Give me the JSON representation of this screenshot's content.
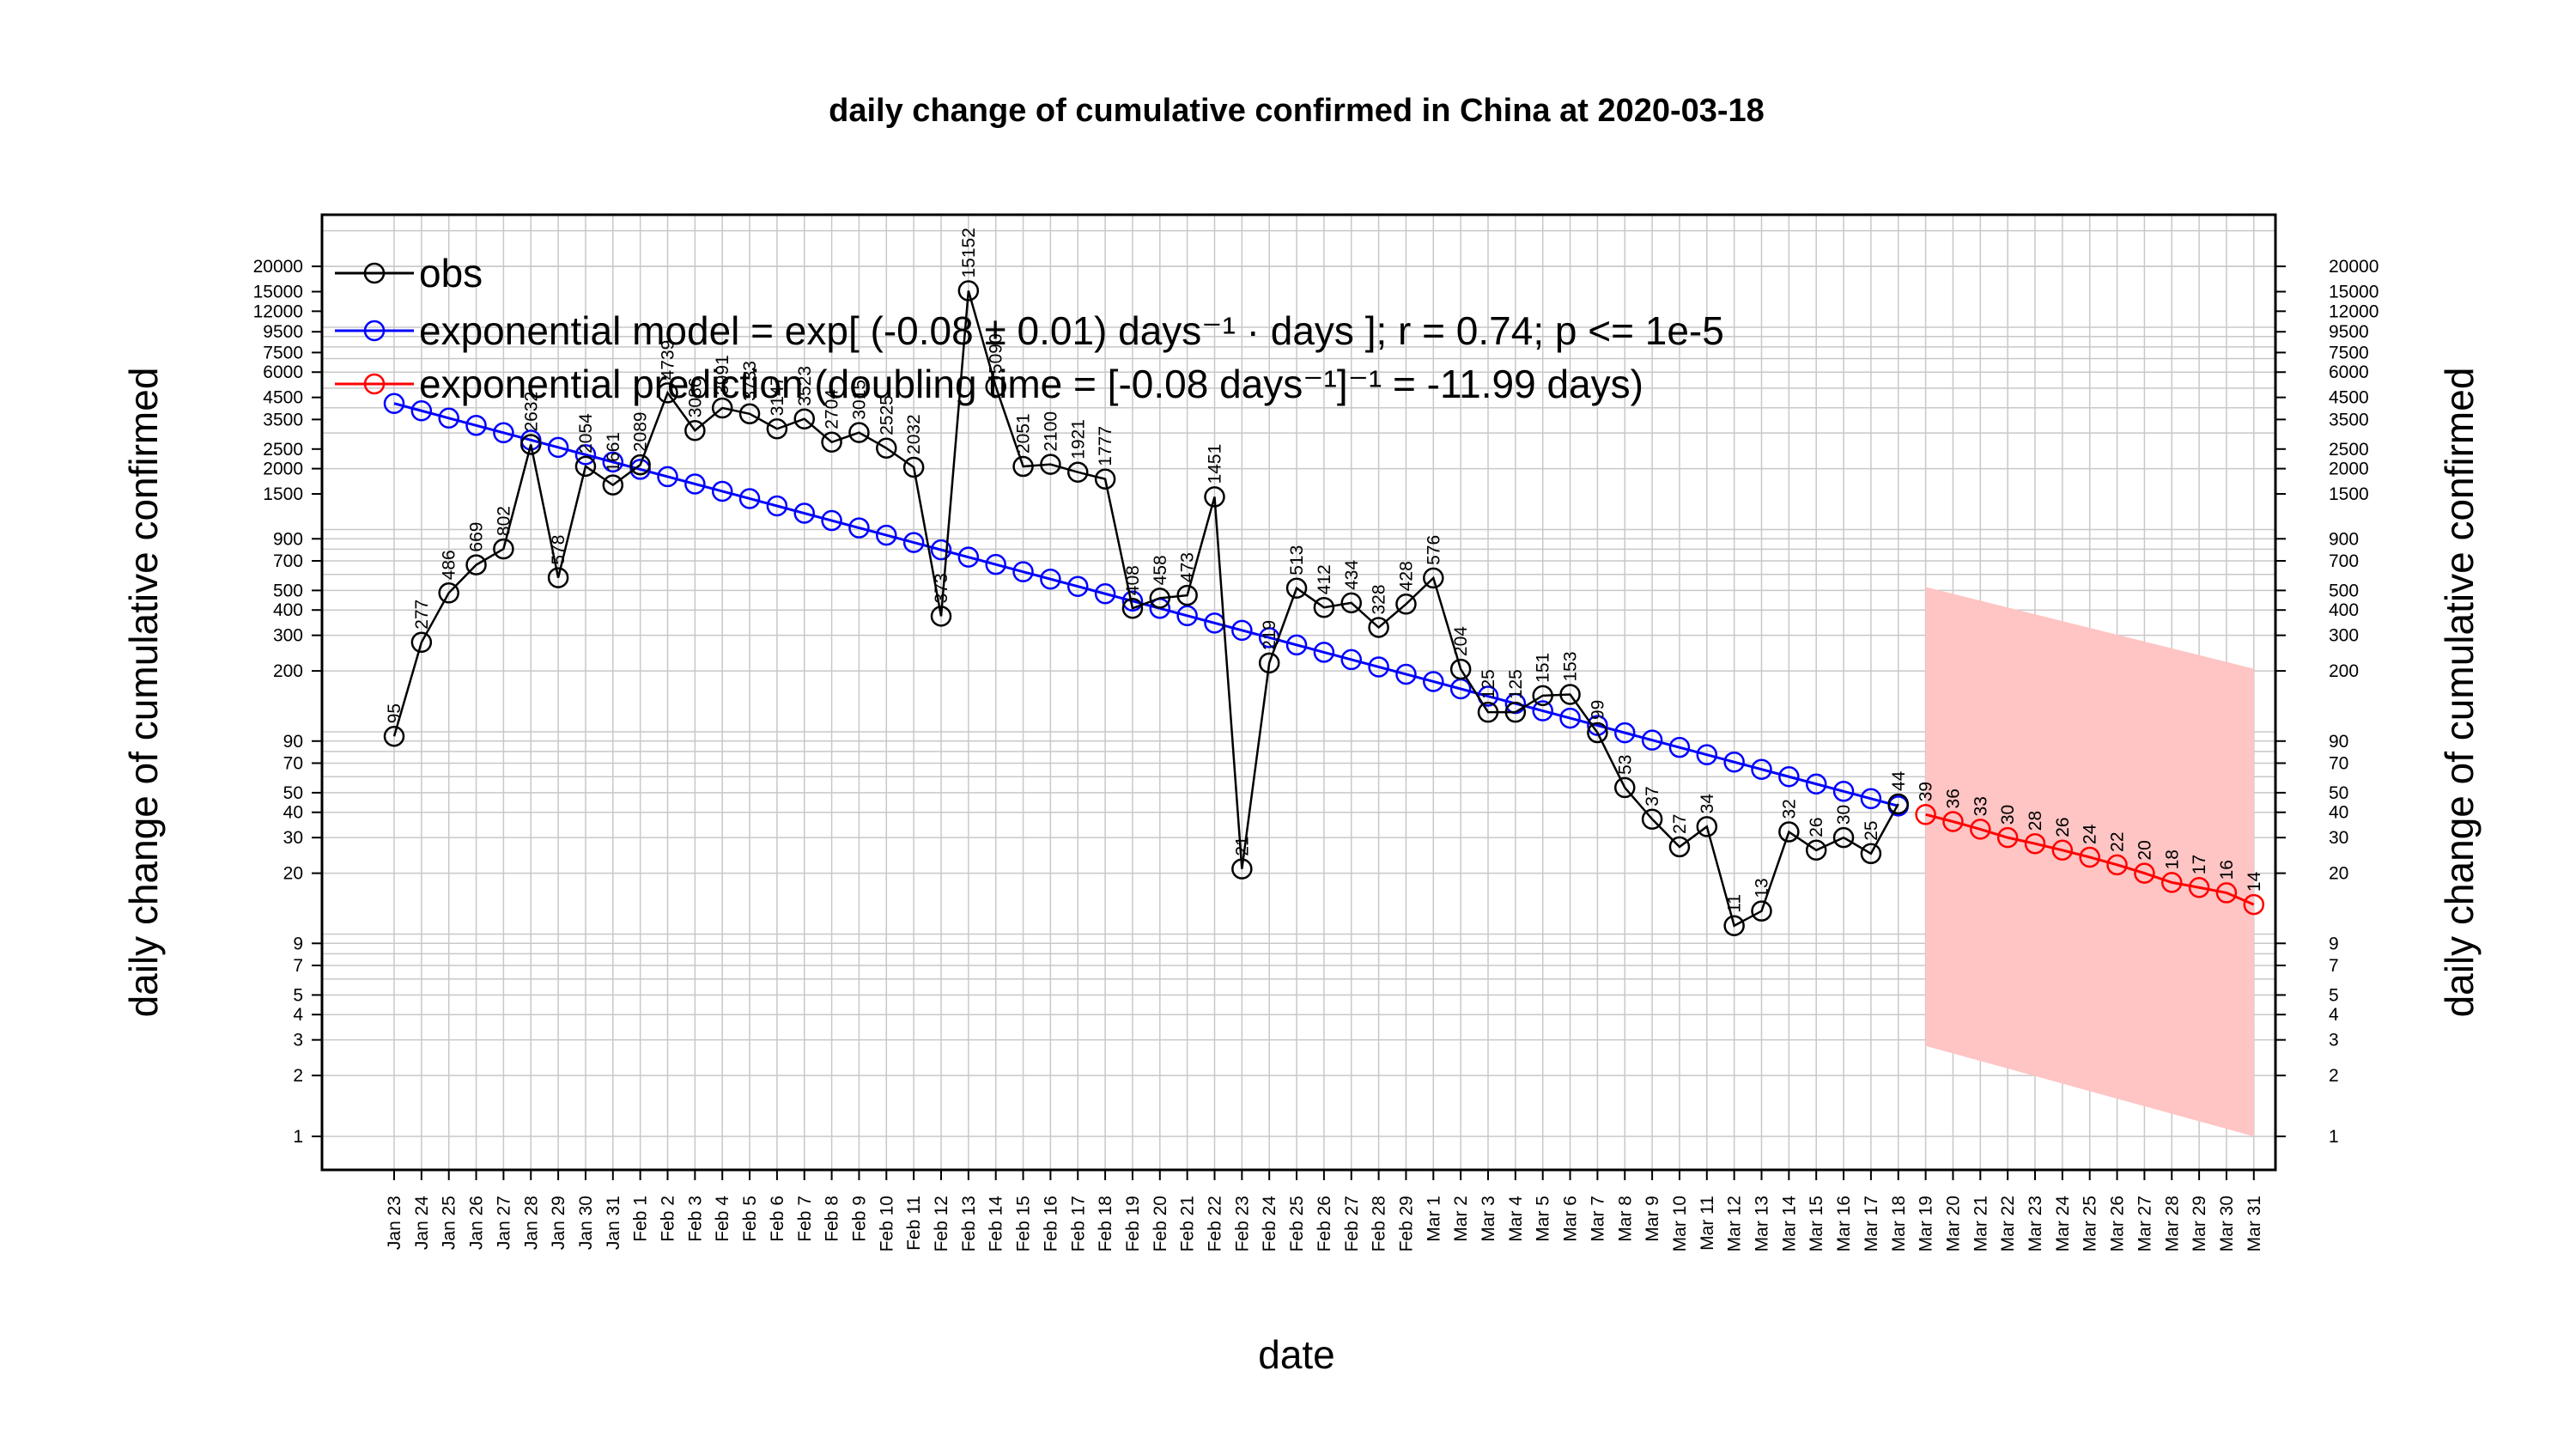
{
  "chart_data": {
    "type": "line",
    "title": "daily change of cumulative confirmed in China at 2020-03-18",
    "xlabel": "date",
    "ylabel": "daily change of cumulative confirmed",
    "y_scale": "log",
    "ylim": [
      0.7,
      25000
    ],
    "grid": true,
    "legend_position": "top-left",
    "y_ticks": [
      1,
      2,
      3,
      4,
      5,
      7,
      9,
      20,
      30,
      40,
      50,
      70,
      90,
      200,
      300,
      400,
      500,
      700,
      900,
      1500,
      2000,
      2500,
      3500,
      4500,
      6000,
      7500,
      9500,
      12000,
      15000,
      20000
    ],
    "x_dates": [
      "Jan 23",
      "Jan 24",
      "Jan 25",
      "Jan 26",
      "Jan 27",
      "Jan 28",
      "Jan 29",
      "Jan 30",
      "Jan 31",
      "Feb 1",
      "Feb 2",
      "Feb 3",
      "Feb 4",
      "Feb 5",
      "Feb 6",
      "Feb 7",
      "Feb 8",
      "Feb 9",
      "Feb 10",
      "Feb 11",
      "Feb 12",
      "Feb 13",
      "Feb 14",
      "Feb 15",
      "Feb 16",
      "Feb 17",
      "Feb 18",
      "Feb 19",
      "Feb 20",
      "Feb 21",
      "Feb 22",
      "Feb 23",
      "Feb 24",
      "Feb 25",
      "Feb 26",
      "Feb 27",
      "Feb 28",
      "Feb 29",
      "Mar 1",
      "Mar 2",
      "Mar 3",
      "Mar 4",
      "Mar 5",
      "Mar 6",
      "Mar 7",
      "Mar 8",
      "Mar 9",
      "Mar 10",
      "Mar 11",
      "Mar 12",
      "Mar 13",
      "Mar 14",
      "Mar 15",
      "Mar 16",
      "Mar 17",
      "Mar 18",
      "Mar 19",
      "Mar 20",
      "Mar 21",
      "Mar 22",
      "Mar 23",
      "Mar 24",
      "Mar 25",
      "Mar 26",
      "Mar 27",
      "Mar 28",
      "Mar 29",
      "Mar 30",
      "Mar 31"
    ],
    "series": [
      {
        "name": "obs",
        "color": "#000000",
        "x": [
          "Jan 23",
          "Jan 24",
          "Jan 25",
          "Jan 26",
          "Jan 27",
          "Jan 28",
          "Jan 29",
          "Jan 30",
          "Jan 31",
          "Feb 1",
          "Feb 2",
          "Feb 3",
          "Feb 4",
          "Feb 5",
          "Feb 6",
          "Feb 7",
          "Feb 8",
          "Feb 9",
          "Feb 10",
          "Feb 11",
          "Feb 12",
          "Feb 13",
          "Feb 14",
          "Feb 15",
          "Feb 16",
          "Feb 17",
          "Feb 18",
          "Feb 19",
          "Feb 20",
          "Feb 21",
          "Feb 22",
          "Feb 23",
          "Feb 24",
          "Feb 25",
          "Feb 26",
          "Feb 27",
          "Feb 28",
          "Feb 29",
          "Mar 1",
          "Mar 2",
          "Mar 3",
          "Mar 4",
          "Mar 5",
          "Mar 6",
          "Mar 7",
          "Mar 8",
          "Mar 9",
          "Mar 10",
          "Mar 11",
          "Mar 12",
          "Mar 13",
          "Mar 14",
          "Mar 15",
          "Mar 16",
          "Mar 17",
          "Mar 18"
        ],
        "values": [
          95,
          277,
          486,
          669,
          802,
          2632,
          578,
          2054,
          1661,
          2089,
          4739,
          3086,
          3991,
          3733,
          3147,
          3523,
          2704,
          3015,
          2525,
          2032,
          373,
          15152,
          5090,
          2051,
          2100,
          1921,
          1777,
          408,
          458,
          473,
          1451,
          21,
          219,
          513,
          412,
          434,
          328,
          428,
          576,
          204,
          125,
          125,
          151,
          153,
          99,
          53,
          37,
          27,
          34,
          11,
          13,
          32,
          26,
          30,
          25,
          44
        ],
        "labels": [
          "95",
          "277",
          "486",
          "669",
          "802",
          "2632",
          "578",
          "2054",
          "1661",
          "2089",
          "4739",
          "3086",
          "3991",
          "3733",
          "3147",
          "3523",
          "2704",
          "3015",
          "2525",
          "2032",
          "373",
          "15152",
          "5090",
          "2051",
          "2100",
          "1921",
          "1777",
          "408",
          "458",
          "473",
          "1451",
          "21",
          "219",
          "513",
          "412",
          "434",
          "328",
          "428",
          "576",
          "204",
          "125",
          "125",
          "151",
          "153",
          "99",
          "53",
          "37",
          "27",
          "34",
          "11",
          "13",
          "32",
          "26",
          "30",
          "25",
          "44"
        ]
      },
      {
        "name": "exponential model",
        "color": "#0000ff",
        "x": [
          "Jan 23",
          "Jan 24",
          "Jan 25",
          "Jan 26",
          "Jan 27",
          "Jan 28",
          "Jan 29",
          "Jan 30",
          "Jan 31",
          "Feb 1",
          "Feb 2",
          "Feb 3",
          "Feb 4",
          "Feb 5",
          "Feb 6",
          "Feb 7",
          "Feb 8",
          "Feb 9",
          "Feb 10",
          "Feb 11",
          "Feb 12",
          "Feb 13",
          "Feb 14",
          "Feb 15",
          "Feb 16",
          "Feb 17",
          "Feb 18",
          "Feb 19",
          "Feb 20",
          "Feb 21",
          "Feb 22",
          "Feb 23",
          "Feb 24",
          "Feb 25",
          "Feb 26",
          "Feb 27",
          "Feb 28",
          "Feb 29",
          "Mar 1",
          "Mar 2",
          "Mar 3",
          "Mar 4",
          "Mar 5",
          "Mar 6",
          "Mar 7",
          "Mar 8",
          "Mar 9",
          "Mar 10",
          "Mar 11",
          "Mar 12",
          "Mar 13",
          "Mar 14",
          "Mar 15",
          "Mar 16",
          "Mar 17",
          "Mar 18"
        ],
        "start": 4200,
        "end": 43
      },
      {
        "name": "exponential prediction",
        "color": "#ff0000",
        "x": [
          "Mar 19",
          "Mar 20",
          "Mar 21",
          "Mar 22",
          "Mar 23",
          "Mar 24",
          "Mar 25",
          "Mar 26",
          "Mar 27",
          "Mar 28",
          "Mar 29",
          "Mar 30",
          "Mar 31"
        ],
        "values": [
          39,
          36,
          33,
          30,
          28,
          26,
          24,
          22,
          20,
          18,
          17,
          16,
          14
        ],
        "labels": [
          "39",
          "36",
          "33",
          "30",
          "28",
          "26",
          "24",
          "22",
          "20",
          "18",
          "17",
          "16",
          "14"
        ],
        "band_upper": [
          520,
          205
        ],
        "band_lower": [
          2.8,
          1.0
        ],
        "band_color": "#ffc4c4"
      }
    ],
    "legend": [
      {
        "label": "obs",
        "color": "#000000"
      },
      {
        "label": "exponential model = exp[ (-0.08 ± 0.01) days⁻¹ · days ]; r = 0.74; p <= 1e-5",
        "color": "#0000ff"
      },
      {
        "label": "exponential prediction (doubling time = [-0.08 days⁻¹]⁻¹ = -11.99 days)",
        "color": "#ff0000"
      }
    ]
  }
}
